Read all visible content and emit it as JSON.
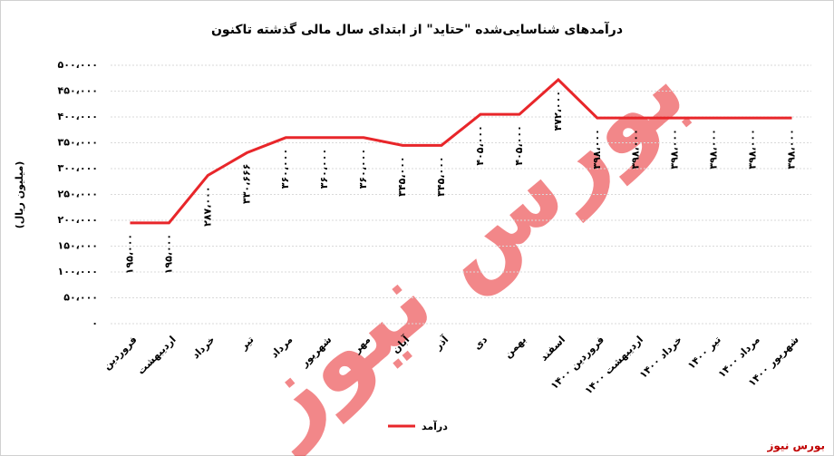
{
  "chart_data": {
    "type": "line",
    "title": "درآمدهای شناسایی‌شده \"حتاید\" از ابتدای سال مالی گذشته تاکنون",
    "y_label": "(میلیون ریال)",
    "source": "بورس نیوز",
    "categories": [
      "فروردین",
      "اردیبهشت",
      "خرداد",
      "تیر",
      "مرداد",
      "شهریور",
      "مهر",
      "آبان",
      "آذر",
      "دی",
      "بهمن",
      "اسفند",
      "فروردین ۱۴۰۰",
      "اردیبهشت ۱۴۰۰",
      "خرداد ۱۴۰۰",
      "تیر ۱۴۰۰",
      "مرداد ۱۴۰۰",
      "شهریور ۱۴۰۰"
    ],
    "series": [
      {
        "name": "درآمد",
        "color": "#e8262a",
        "values": [
          195000,
          195000,
          287000,
          330666,
          360000,
          360000,
          360000,
          345000,
          345000,
          405000,
          405000,
          472000,
          398000,
          398000,
          398000,
          398000,
          398000,
          398000
        ],
        "value_labels": [
          "۱۹۵،۰۰۰",
          "۱۹۵،۰۰۰",
          "۲۸۷،۰۰۰",
          "۳۳۰،۶۶۶",
          "۳۶۰،۰۰۰",
          "۳۶۰،۰۰۰",
          "۳۶۰،۰۰۰",
          "۳۴۵،۰۰۰",
          "۳۴۵،۰۰۰",
          "۴۰۵،۰۰۰",
          "۴۰۵،۰۰۰",
          "۴۷۲،۰۰۰",
          "۳۹۸،۰۰۰",
          "۳۹۸،۰۰۰",
          "۳۹۸،۰۰۰",
          "۳۹۸،۰۰۰",
          "۳۹۸،۰۰۰",
          "۳۹۸،۰۰۰"
        ]
      }
    ],
    "ylim": [
      0,
      500000
    ],
    "yticks": [
      {
        "value": 0,
        "label": "۰"
      },
      {
        "value": 50000,
        "label": "۵۰،۰۰۰"
      },
      {
        "value": 100000,
        "label": "۱۰۰،۰۰۰"
      },
      {
        "value": 150000,
        "label": "۱۵۰،۰۰۰"
      },
      {
        "value": 200000,
        "label": "۲۰۰،۰۰۰"
      },
      {
        "value": 250000,
        "label": "۲۵۰،۰۰۰"
      },
      {
        "value": 300000,
        "label": "۳۰۰،۰۰۰"
      },
      {
        "value": 350000,
        "label": "۳۵۰،۰۰۰"
      },
      {
        "value": 400000,
        "label": "۴۰۰،۰۰۰"
      },
      {
        "value": 450000,
        "label": "۴۵۰،۰۰۰"
      },
      {
        "value": 500000,
        "label": "۵۰۰،۰۰۰"
      }
    ],
    "grid": true
  }
}
